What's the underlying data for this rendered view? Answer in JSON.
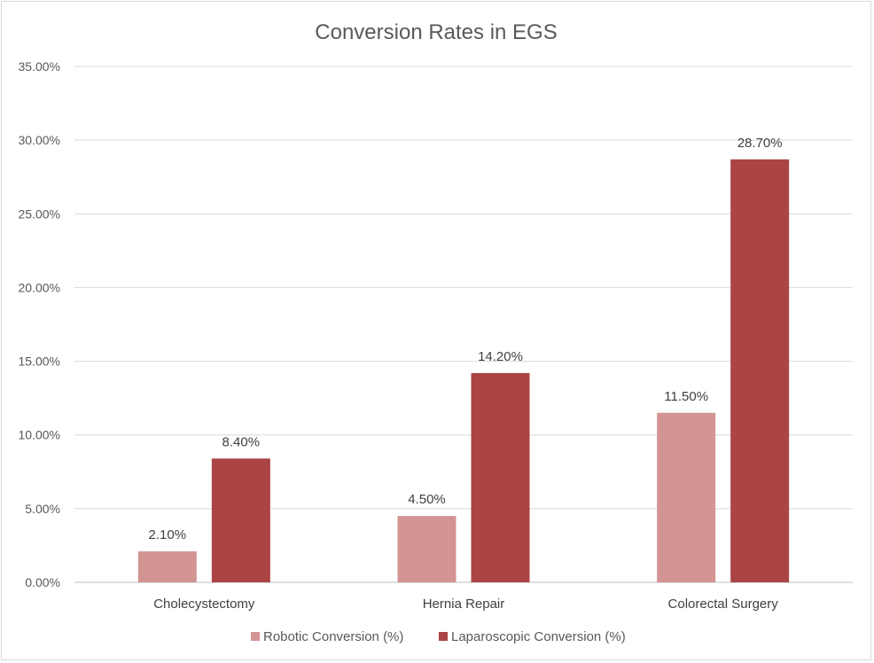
{
  "chart_data": {
    "type": "bar",
    "title": "Conversion Rates in EGS",
    "categories": [
      "Cholecystectomy",
      "Hernia Repair",
      "Colorectal Surgery"
    ],
    "series": [
      {
        "name": "Robotic Conversion (%)",
        "values": [
          2.1,
          4.5,
          11.5
        ],
        "labels": [
          "2.10%",
          "4.50%",
          "11.50%"
        ],
        "color": "#d39494"
      },
      {
        "name": "Laparoscopic Conversion (%)",
        "values": [
          8.4,
          14.2,
          28.7
        ],
        "labels": [
          "8.40%",
          "14.20%",
          "28.70%"
        ],
        "color": "#ab4444"
      }
    ],
    "ylim": [
      0,
      35
    ],
    "yticks": [
      0,
      5,
      10,
      15,
      20,
      25,
      30,
      35
    ],
    "ytick_labels": [
      "0.00%",
      "5.00%",
      "10.00%",
      "15.00%",
      "20.00%",
      "25.00%",
      "30.00%",
      "35.00%"
    ],
    "grid": true,
    "legend_position": "bottom"
  }
}
